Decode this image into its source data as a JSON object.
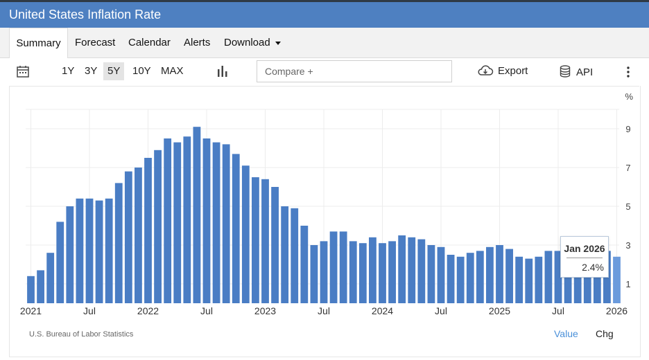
{
  "title": "United States Inflation Rate",
  "tabs": [
    {
      "label": "Summary"
    },
    {
      "label": "Forecast"
    },
    {
      "label": "Calendar"
    },
    {
      "label": "Alerts"
    },
    {
      "label": "Download"
    }
  ],
  "toolbar": {
    "ranges": [
      "1Y",
      "3Y",
      "5Y",
      "10Y",
      "MAX"
    ],
    "selected_range": "5Y",
    "compare_placeholder": "Compare +",
    "export_label": "Export",
    "api_label": "API"
  },
  "icons": {
    "calendar": "calendar-icon",
    "chart_type": "bar-chart-icon",
    "export": "cloud-download-icon",
    "api": "database-icon",
    "more": "more-vertical-icon"
  },
  "colors": {
    "header": "#4e80c1",
    "bar": "#4a7dc4",
    "bar_highlight": "#6b9bdc",
    "value_toggle": "#4a90d9"
  },
  "chart_data": {
    "type": "bar",
    "unit": "%",
    "ylim": [
      0,
      10
    ],
    "y_ticks": [
      "1",
      "3",
      "5",
      "7",
      "9"
    ],
    "x_tick_labels": [
      "2021",
      "Jul",
      "2022",
      "Jul",
      "2023",
      "Jul",
      "2024",
      "Jul",
      "2025",
      "Jul",
      "2026"
    ],
    "categories": [
      "Jan 2021",
      "Feb 2021",
      "Mar 2021",
      "Apr 2021",
      "May 2021",
      "Jun 2021",
      "Jul 2021",
      "Aug 2021",
      "Sep 2021",
      "Oct 2021",
      "Nov 2021",
      "Dec 2021",
      "Jan 2022",
      "Feb 2022",
      "Mar 2022",
      "Apr 2022",
      "May 2022",
      "Jun 2022",
      "Jul 2022",
      "Aug 2022",
      "Sep 2022",
      "Oct 2022",
      "Nov 2022",
      "Dec 2022",
      "Jan 2023",
      "Feb 2023",
      "Mar 2023",
      "Apr 2023",
      "May 2023",
      "Jun 2023",
      "Jul 2023",
      "Aug 2023",
      "Sep 2023",
      "Oct 2023",
      "Nov 2023",
      "Dec 2023",
      "Jan 2024",
      "Feb 2024",
      "Mar 2024",
      "Apr 2024",
      "May 2024",
      "Jun 2024",
      "Jul 2024",
      "Aug 2024",
      "Sep 2024",
      "Oct 2024",
      "Nov 2024",
      "Dec 2024",
      "Jan 2025",
      "Feb 2025",
      "Mar 2025",
      "Apr 2025",
      "May 2025",
      "Jun 2025",
      "Jul 2025",
      "Aug 2025",
      "Sep 2025",
      "Oct 2025",
      "Nov 2025",
      "Dec 2025",
      "Jan 2026"
    ],
    "values": [
      1.4,
      1.7,
      2.6,
      4.2,
      5.0,
      5.4,
      5.4,
      5.3,
      5.4,
      6.2,
      6.8,
      7.0,
      7.5,
      7.9,
      8.5,
      8.3,
      8.6,
      9.1,
      8.5,
      8.3,
      8.2,
      7.7,
      7.1,
      6.5,
      6.4,
      6.0,
      5.0,
      4.9,
      4.0,
      3.0,
      3.2,
      3.7,
      3.7,
      3.2,
      3.1,
      3.4,
      3.1,
      3.2,
      3.5,
      3.4,
      3.3,
      3.0,
      2.9,
      2.5,
      2.4,
      2.6,
      2.7,
      2.9,
      3.0,
      2.8,
      2.4,
      2.3,
      2.4,
      2.7,
      2.7,
      2.9,
      3.0,
      3.0,
      2.7,
      2.7,
      2.4
    ],
    "tooltip": {
      "label": "Jan 2026",
      "value": "2.4%"
    },
    "grid": true
  },
  "footer": {
    "source": "U.S. Bureau of Labor Statistics",
    "value_label": "Value",
    "chg_label": "Chg"
  }
}
